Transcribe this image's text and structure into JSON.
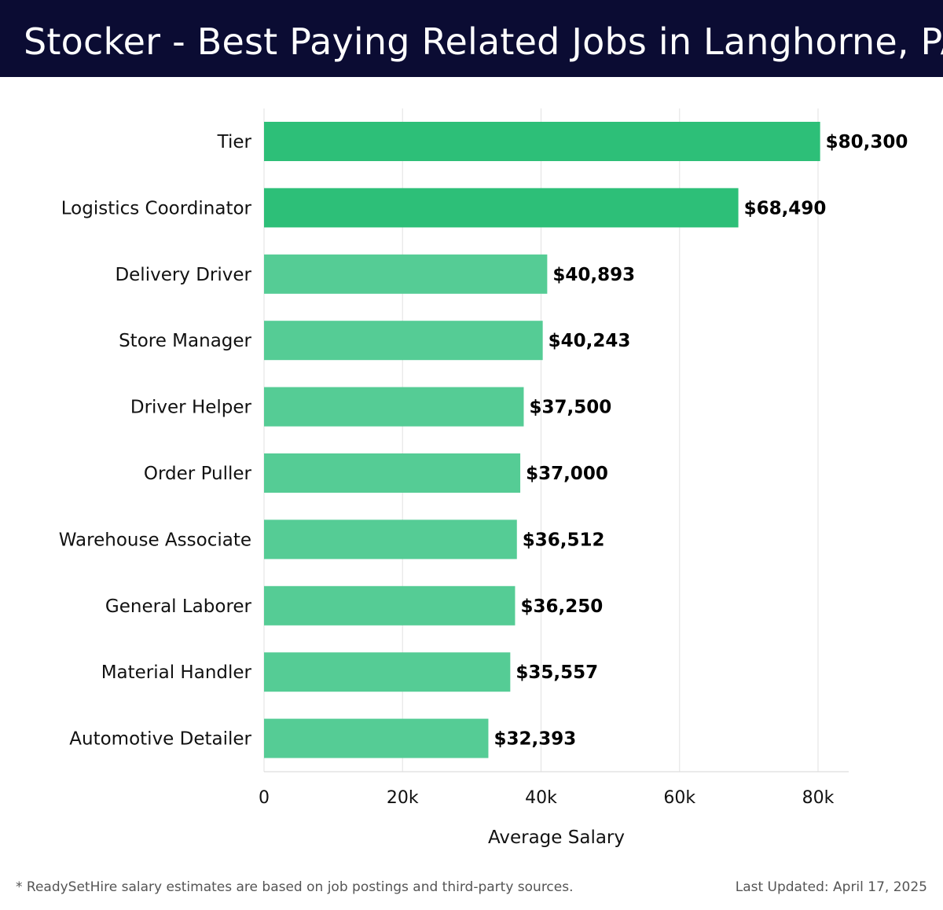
{
  "header": {
    "title": "Stocker - Best Paying Related Jobs in Langhorne, PA",
    "background": "#0b0c33"
  },
  "chart_data": {
    "type": "bar",
    "orientation": "horizontal",
    "categories": [
      "Tier",
      "Logistics Coordinator",
      "Delivery Driver",
      "Store Manager",
      "Driver Helper",
      "Order Puller",
      "Warehouse Associate",
      "General Laborer",
      "Material Handler",
      "Automotive Detailer"
    ],
    "values": [
      80300,
      68490,
      40893,
      40243,
      37500,
      37000,
      36512,
      36250,
      35557,
      32393
    ],
    "value_labels": [
      "$80,300",
      "$68,490",
      "$40,893",
      "$40,243",
      "$37,500",
      "$37,000",
      "$36,512",
      "$36,250",
      "$35,557",
      "$32,393"
    ],
    "xlabel": "Average Salary",
    "ylabel": "",
    "xlim": [
      0,
      84500
    ],
    "xticks": [
      0,
      20000,
      40000,
      60000,
      80000
    ],
    "xtick_labels": [
      "0",
      "20k",
      "40k",
      "60k",
      "80k"
    ],
    "grid": "vertical",
    "colors": {
      "highlight": "#2dbf78",
      "default": "#55cc95",
      "grid": "#e6e6e6",
      "label": "#111111"
    },
    "highlight_top": 2
  },
  "footer": {
    "note": "* ReadySetHire salary estimates are based on job postings and third-party sources.",
    "updated": "Last Updated: April 17, 2025"
  }
}
